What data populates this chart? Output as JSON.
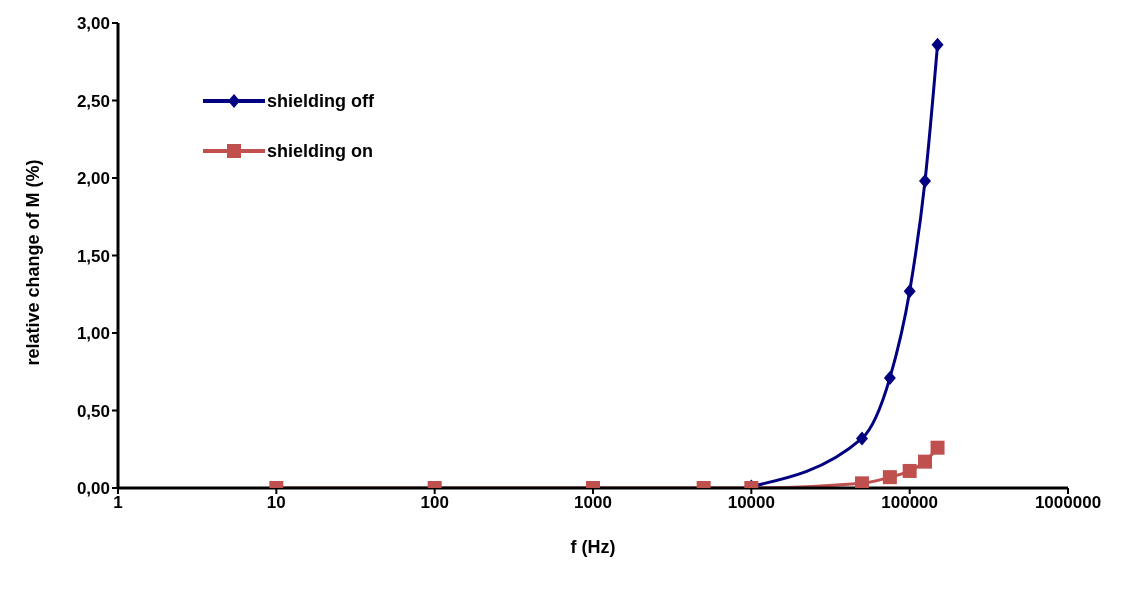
{
  "chart_data": {
    "type": "line",
    "xlabel": "f (Hz)",
    "ylabel": "relative change of M (%)",
    "log": "x",
    "x": [
      10,
      100,
      1000,
      5000,
      10000,
      50000,
      75000,
      100000,
      125000,
      150000
    ],
    "series": [
      {
        "name": "shielding off",
        "color": "#000080",
        "marker": "diamond",
        "values": [
          null,
          null,
          null,
          null,
          0.01,
          0.32,
          0.71,
          1.27,
          1.98,
          2.86
        ]
      },
      {
        "name": "shielding on",
        "color": "#c0504d",
        "marker": "square",
        "values": [
          0,
          0,
          0,
          0,
          0,
          0.03,
          0.07,
          0.11,
          0.17,
          0.26
        ]
      }
    ],
    "xlim": [
      1,
      1000000
    ],
    "xticks": [
      1,
      10,
      100,
      1000,
      10000,
      100000,
      1000000
    ],
    "ylim": [
      0,
      3
    ],
    "yticks": [
      {
        "value": 0,
        "label": "0,00"
      },
      {
        "value": 0.5,
        "label": "0,50"
      },
      {
        "value": 1,
        "label": "1,00"
      },
      {
        "value": 1.5,
        "label": "1,50"
      },
      {
        "value": 2,
        "label": "2,00"
      },
      {
        "value": 2.5,
        "label": "2,50"
      },
      {
        "value": 3,
        "label": "3,00"
      }
    ],
    "grid": false,
    "legend": "top left"
  }
}
